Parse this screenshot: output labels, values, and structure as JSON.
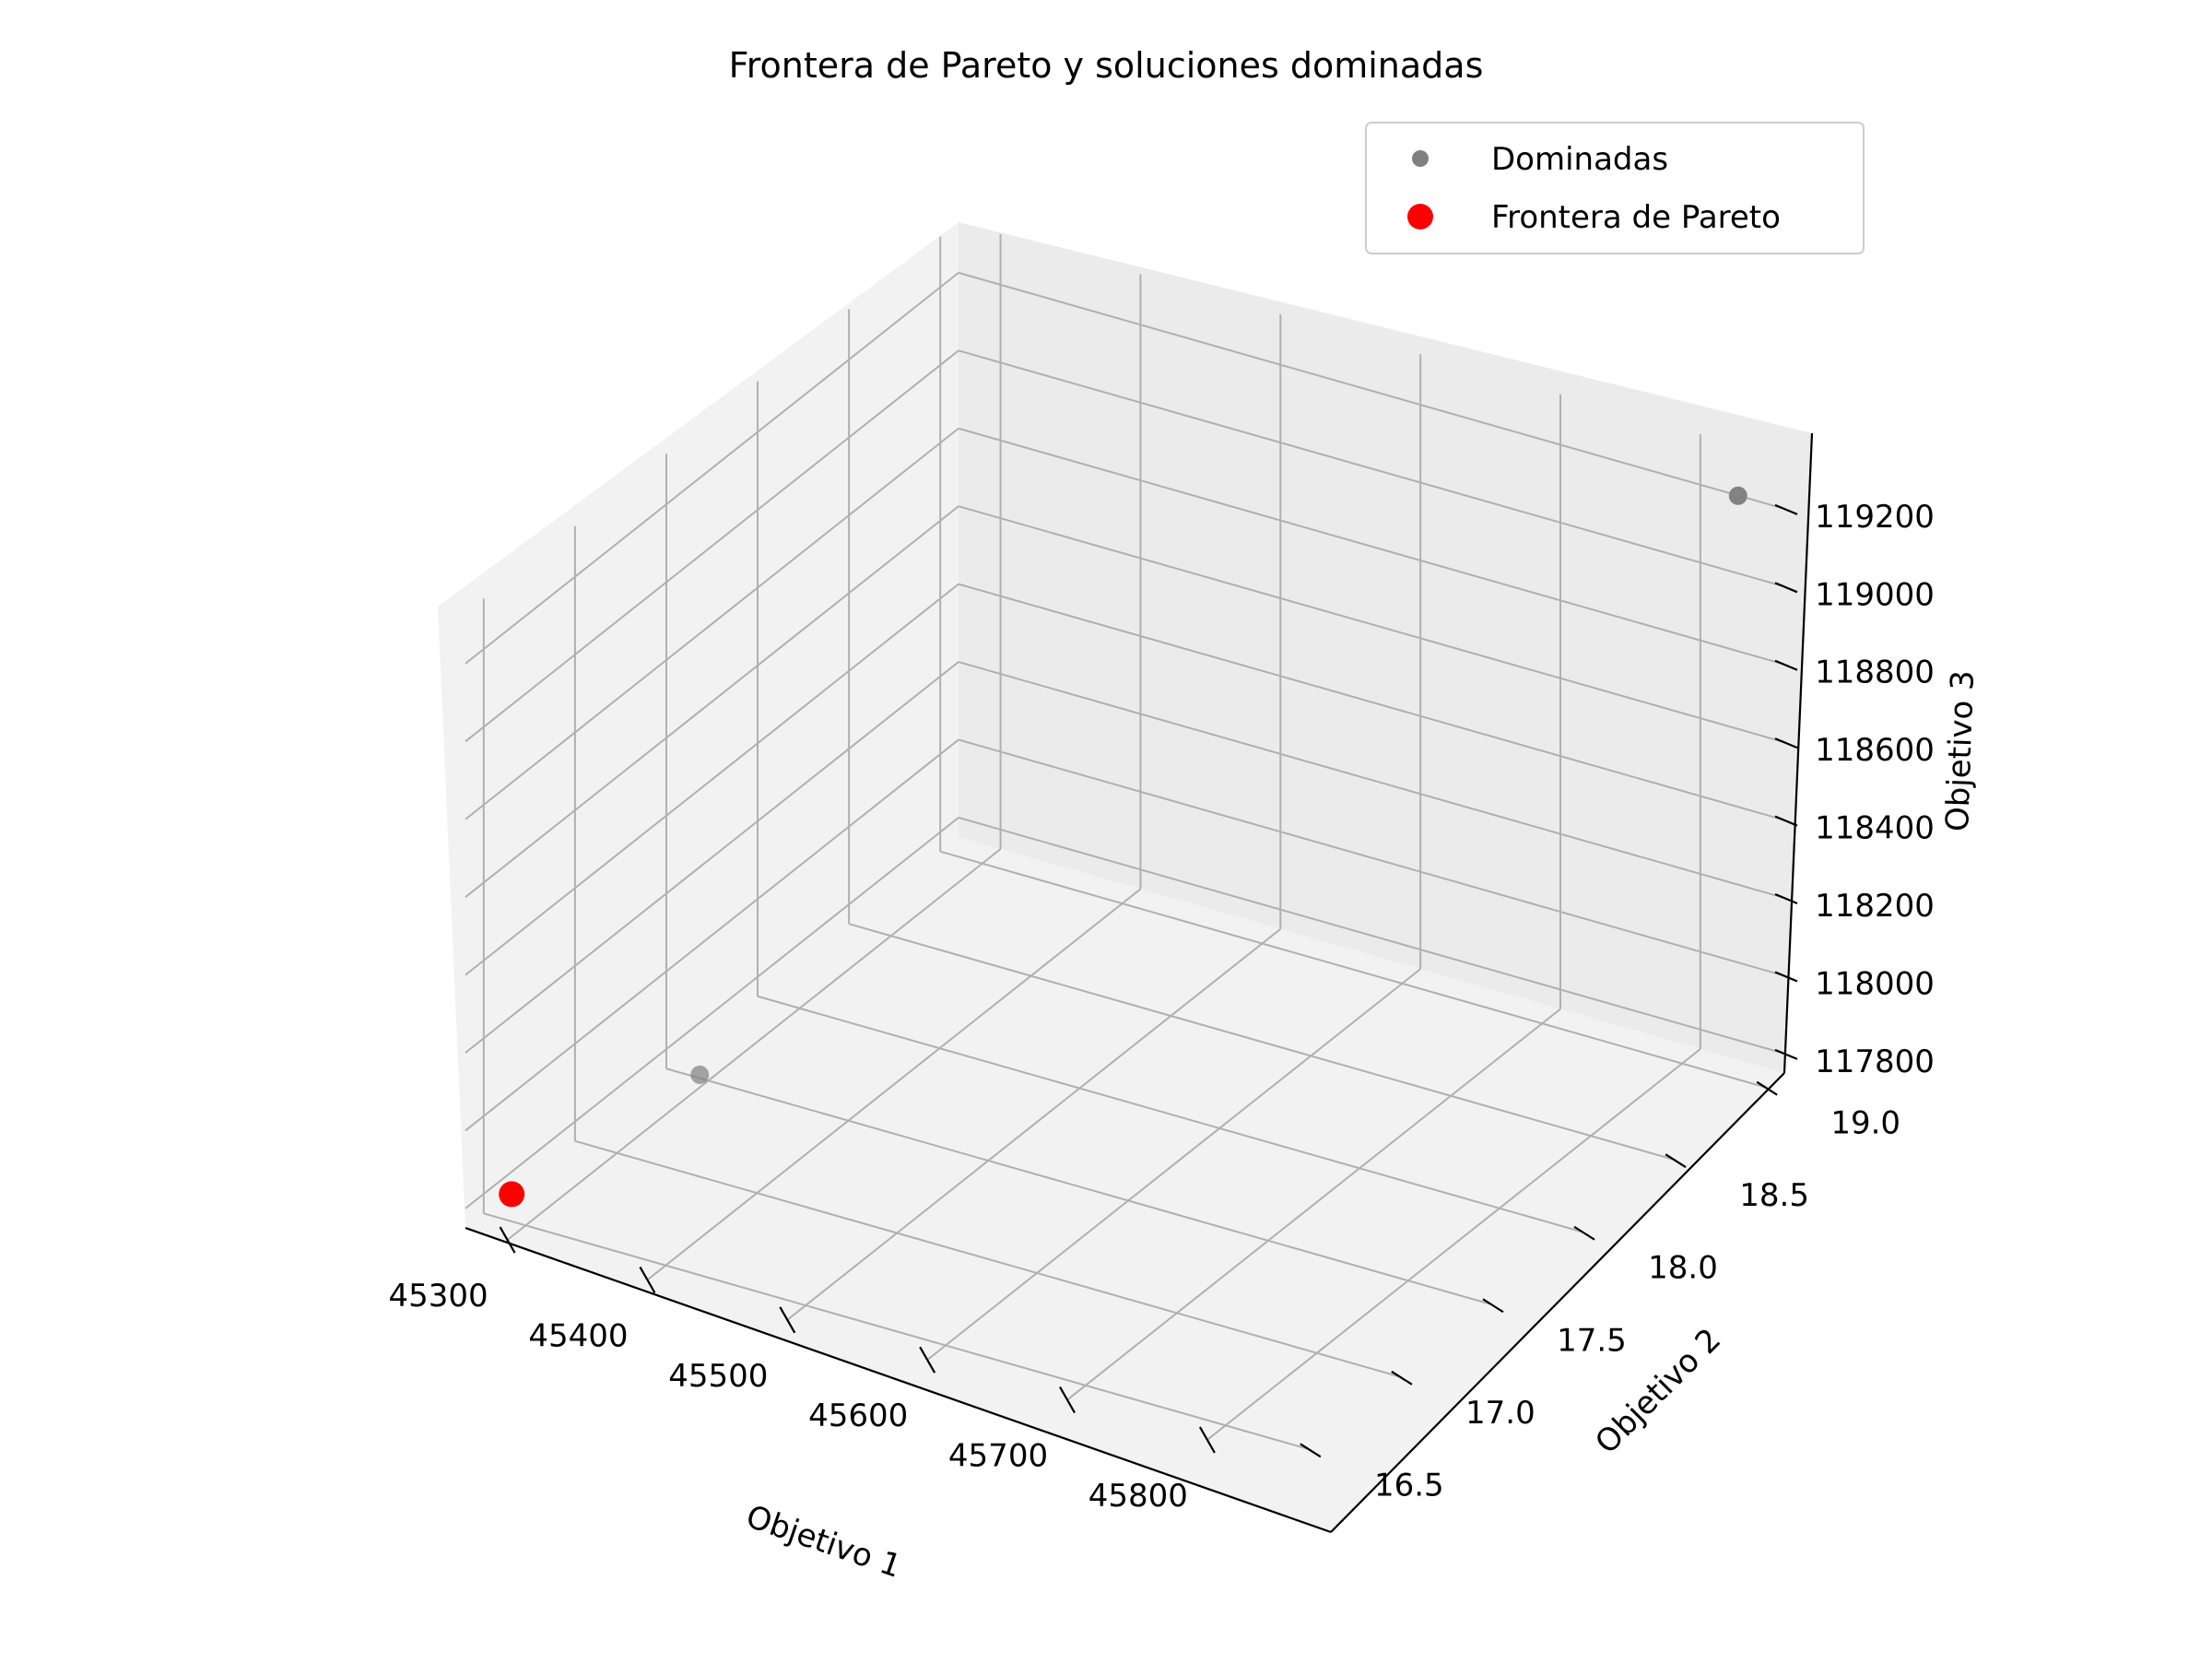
{
  "chart_data": {
    "type": "scatter",
    "projection": "3d",
    "title": "Frontera de Pareto y soluciones dominadas",
    "xlabel": "Objetivo 1",
    "ylabel": "Objetivo 2",
    "zlabel": "Objetivo 3",
    "xlim": [
      45270,
      45860
    ],
    "ylim": [
      16.4,
      19.1
    ],
    "zlim": [
      117750,
      119330
    ],
    "x_ticks": [
      "45300",
      "45400",
      "45500",
      "45600",
      "45700",
      "45800"
    ],
    "y_ticks": [
      "16.5",
      "17.0",
      "17.5",
      "18.0",
      "18.5",
      "19.0"
    ],
    "z_ticks": [
      "117800",
      "118000",
      "118200",
      "118400",
      "118600",
      "118800",
      "119000",
      "119200"
    ],
    "grid": true,
    "legend_position": "top-right",
    "series": [
      {
        "name": "Dominadas",
        "color": "#808080",
        "points": [
          {
            "x": 45320,
            "y": 17.3,
            "z": 117860
          },
          {
            "x": 45840,
            "y": 19.0,
            "z": 119250
          }
        ]
      },
      {
        "name": "Frontera de Pareto",
        "color": "#ff0000",
        "points": [
          {
            "x": 45290,
            "y": 16.5,
            "z": 117820
          }
        ]
      }
    ]
  }
}
